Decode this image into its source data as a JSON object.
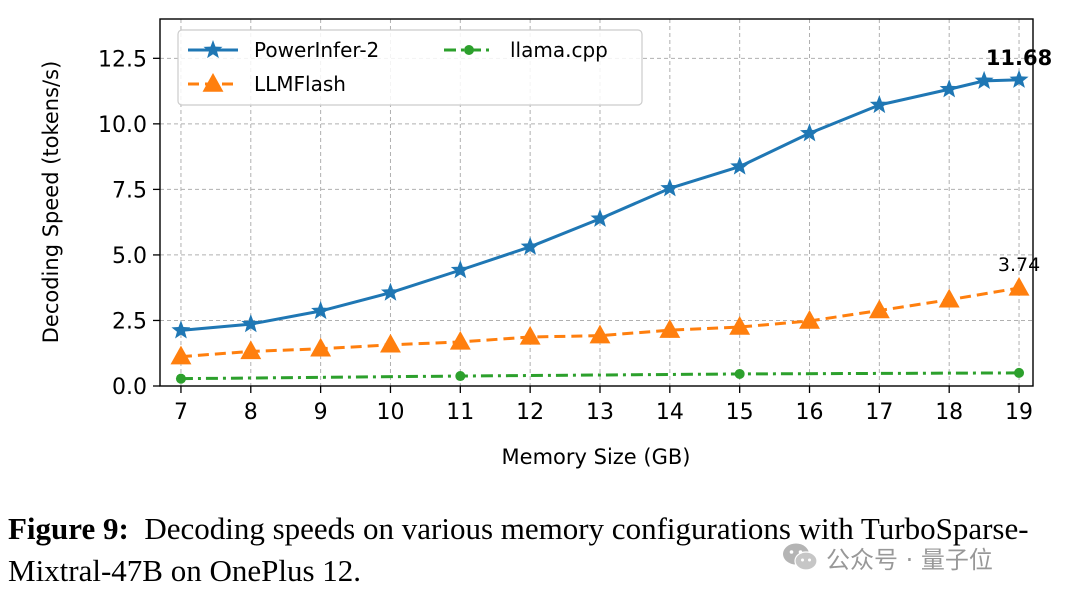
{
  "chart_data": {
    "type": "line",
    "title": "",
    "xlabel": "Memory Size (GB)",
    "ylabel": "Decoding Speed (tokens/s)",
    "xlim": [
      6.7,
      19.2
    ],
    "ylim": [
      0,
      14
    ],
    "xticks": [
      7,
      8,
      9,
      10,
      11,
      12,
      13,
      14,
      15,
      16,
      17,
      18,
      19
    ],
    "yticks": [
      0.0,
      2.5,
      5.0,
      7.5,
      10.0,
      12.5
    ],
    "ytick_labels": [
      "0.0",
      "2.5",
      "5.0",
      "7.5",
      "10.0",
      "12.5"
    ],
    "grid": true,
    "legend_position": "top-left",
    "series": [
      {
        "name": "PowerInfer-2",
        "color": "#1f77b4",
        "marker": "star",
        "linestyle": "solid",
        "x": [
          7,
          8,
          9,
          10,
          11,
          12,
          13,
          14,
          15,
          16,
          17,
          18,
          18.5,
          19
        ],
        "values": [
          2.12,
          2.36,
          2.86,
          3.56,
          4.42,
          5.31,
          6.38,
          7.54,
          8.37,
          9.64,
          10.72,
          11.32,
          11.64,
          11.68
        ]
      },
      {
        "name": "LLMFlash",
        "color": "#ff7f0e",
        "marker": "triangle",
        "linestyle": "dashed",
        "x": [
          7,
          8,
          9,
          10,
          11,
          12,
          13,
          14,
          15,
          16,
          17,
          18,
          19
        ],
        "values": [
          1.12,
          1.32,
          1.42,
          1.57,
          1.68,
          1.87,
          1.92,
          2.13,
          2.25,
          2.48,
          2.88,
          3.29,
          3.74
        ]
      },
      {
        "name": "llama.cpp",
        "color": "#2ca02c",
        "marker": "circle",
        "linestyle": "dashdot",
        "x": [
          7,
          11,
          15,
          19
        ],
        "values": [
          0.28,
          0.38,
          0.46,
          0.5
        ]
      }
    ],
    "annotations": [
      {
        "text": "11.68",
        "x": 19,
        "y": 11.68,
        "bold": true
      },
      {
        "text": "3.74",
        "x": 19,
        "y": 3.74,
        "bold": false
      }
    ]
  },
  "caption": {
    "label": "Figure 9:",
    "text": "Decoding speeds on various memory configurations with TurboSparse-Mixtral-47B on OnePlus 12."
  },
  "watermark": {
    "icon": "wechat-icon",
    "text": "公众号 · 量子位"
  }
}
